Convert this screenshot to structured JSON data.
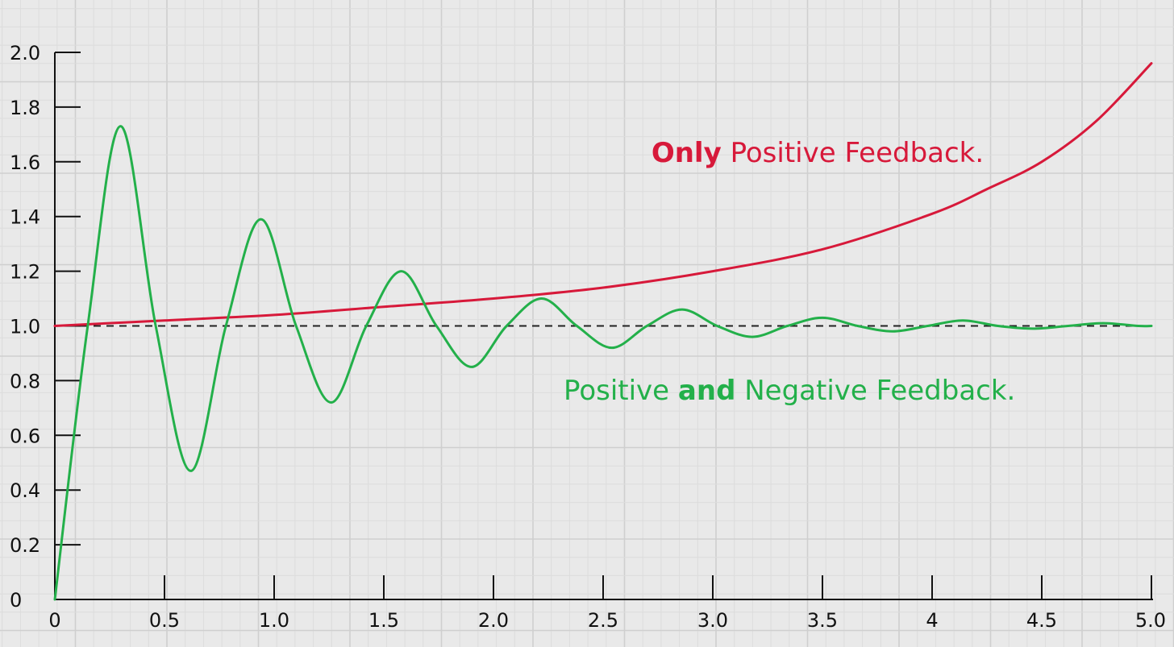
{
  "chart_data": {
    "type": "line",
    "title": "",
    "xlabel": "",
    "ylabel": "",
    "xlim": [
      0,
      5
    ],
    "ylim": [
      0,
      2
    ],
    "grid": true,
    "x_ticks": [
      {
        "value": 0,
        "label": "0"
      },
      {
        "value": 0.5,
        "label": "0.5"
      },
      {
        "value": 1.0,
        "label": "1.0"
      },
      {
        "value": 1.5,
        "label": "1.5"
      },
      {
        "value": 2.0,
        "label": "2.0"
      },
      {
        "value": 2.5,
        "label": "2.5"
      },
      {
        "value": 3.0,
        "label": "3.0"
      },
      {
        "value": 3.5,
        "label": "3.5"
      },
      {
        "value": 4.0,
        "label": "4"
      },
      {
        "value": 4.5,
        "label": "4.5"
      },
      {
        "value": 5.0,
        "label": "5.0"
      }
    ],
    "y_ticks": [
      {
        "value": 0,
        "label": "0"
      },
      {
        "value": 0.2,
        "label": "0.2"
      },
      {
        "value": 0.4,
        "label": "0.4"
      },
      {
        "value": 0.6,
        "label": "0.6"
      },
      {
        "value": 0.8,
        "label": "0.8"
      },
      {
        "value": 1.0,
        "label": "1.0"
      },
      {
        "value": 1.2,
        "label": "1.2"
      },
      {
        "value": 1.4,
        "label": "1.4"
      },
      {
        "value": 1.6,
        "label": "1.6"
      },
      {
        "value": 1.8,
        "label": "1.8"
      },
      {
        "value": 2.0,
        "label": "2.0"
      }
    ],
    "reference_line": {
      "y": 1.0,
      "style": "dashed",
      "color": "#222222"
    },
    "series": [
      {
        "color": "#d7193a",
        "x": [
          0,
          0.5,
          1.0,
          1.5,
          2.0,
          2.5,
          3.0,
          3.5,
          4.0,
          4.25,
          4.5,
          4.75,
          5.0
        ],
        "y": [
          1.0,
          1.02,
          1.04,
          1.07,
          1.1,
          1.14,
          1.2,
          1.28,
          1.41,
          1.5,
          1.6,
          1.75,
          1.96
        ]
      },
      {
        "color": "#23b04a",
        "x": [
          0,
          0.15,
          0.3,
          0.46,
          0.62,
          0.78,
          0.94,
          1.1,
          1.26,
          1.42,
          1.58,
          1.74,
          1.9,
          2.06,
          2.22,
          2.38,
          2.54,
          2.7,
          2.86,
          3.02,
          3.18,
          3.34,
          3.5,
          3.66,
          3.82,
          3.98,
          4.14,
          4.3,
          4.46,
          4.62,
          4.78,
          4.94,
          5.0
        ],
        "y": [
          0,
          1.0,
          1.73,
          1.0,
          0.47,
          1.0,
          1.39,
          1.0,
          0.72,
          1.0,
          1.2,
          1.0,
          0.85,
          1.0,
          1.1,
          1.0,
          0.92,
          1.0,
          1.06,
          1.0,
          0.96,
          1.0,
          1.03,
          1.0,
          0.98,
          1.0,
          1.02,
          1.0,
          0.99,
          1.0,
          1.01,
          1.0,
          1.0
        ]
      }
    ],
    "annotations": [
      {
        "id": "red",
        "bold": "Only",
        "rest": " Positive Feedback.",
        "color": "#d7193a",
        "x": 2.72,
        "y": 1.6
      },
      {
        "id": "green",
        "pre": "Positive ",
        "bold": "and",
        "rest": " Negative Feedback.",
        "color": "#23b04a",
        "x": 2.32,
        "y": 0.73
      }
    ]
  }
}
